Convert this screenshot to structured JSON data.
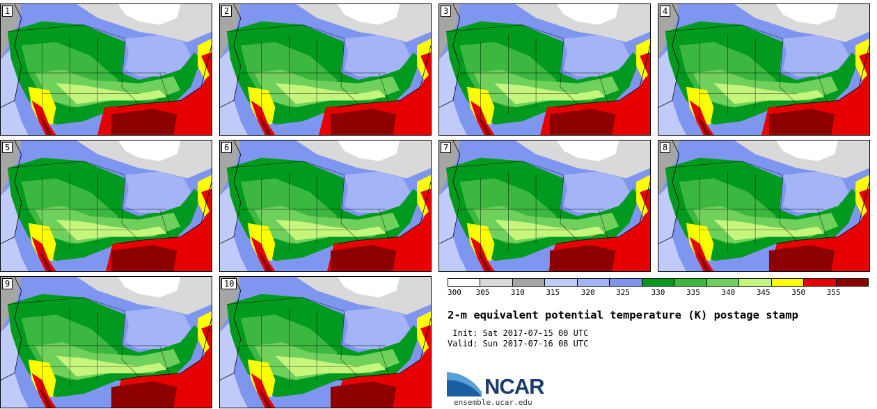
{
  "panels": [
    {
      "label": "1"
    },
    {
      "label": "2"
    },
    {
      "label": "3"
    },
    {
      "label": "4"
    },
    {
      "label": "5"
    },
    {
      "label": "6"
    },
    {
      "label": "7"
    },
    {
      "label": "8"
    },
    {
      "label": "9"
    },
    {
      "label": "10"
    }
  ],
  "legend": {
    "ticks": [
      "300",
      "305",
      "310",
      "315",
      "320",
      "325",
      "330",
      "335",
      "340",
      "345",
      "350",
      "355"
    ],
    "colors": [
      "#ffffff",
      "#d9d9d9",
      "#a6a6a6",
      "#c0cbfa",
      "#a4b4f7",
      "#7f96f1",
      "#009a1e",
      "#3cb840",
      "#6fd05c",
      "#c5f57c",
      "#ffff00",
      "#e60000",
      "#8c0000"
    ]
  },
  "title": "2-m equivalent potential temperature (K) postage stamp",
  "init_line": " Init: Sat 2017-07-15 00 UTC",
  "valid_line": "Valid: Sun 2017-07-16 08 UTC",
  "logo": {
    "name": "NCAR",
    "url": "ensemble.ucar.edu"
  }
}
